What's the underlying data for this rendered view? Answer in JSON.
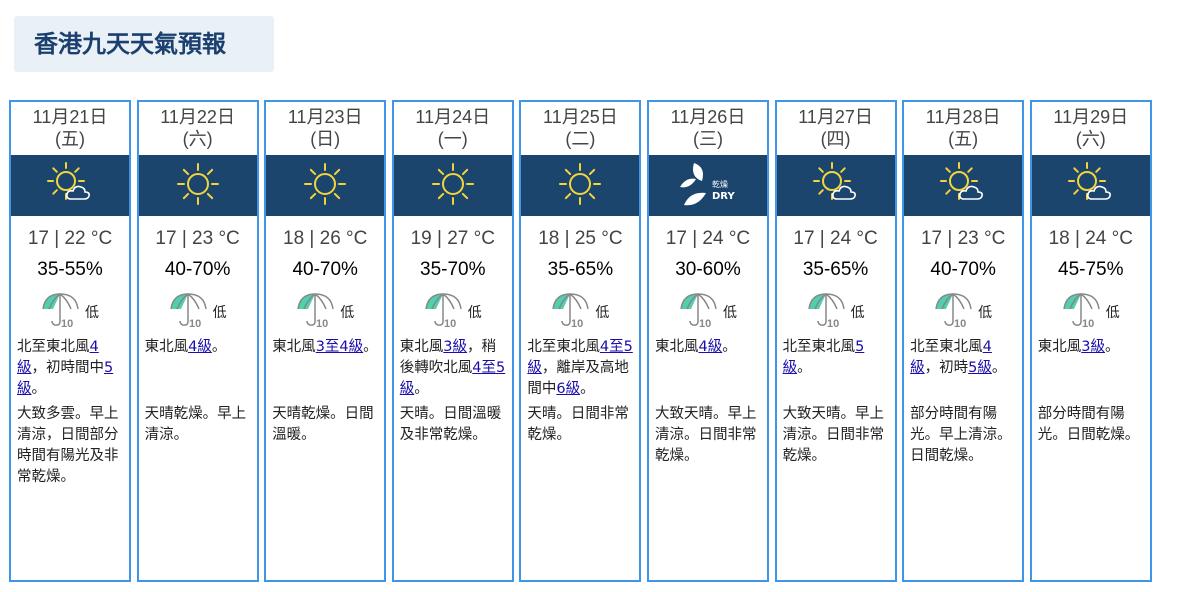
{
  "title": "香港九天天氣預報",
  "colors": {
    "border": "#3f95e8",
    "band": "#1b456c",
    "title_bg": "#e9f0f6",
    "link": "#1a0dab"
  },
  "days": [
    {
      "date": "11月21日",
      "weekday": "(五)",
      "icon": "sun-cloud-icon",
      "temp": "17 | 22 °C",
      "humidity": "35-55%",
      "psr": "低",
      "wind": [
        {
          "t": "北至東北風"
        },
        {
          "t": "4級",
          "link": true
        },
        {
          "t": "，初時間中"
        },
        {
          "t": "5級",
          "link": true
        },
        {
          "t": "。"
        }
      ],
      "desc": "大致多雲。早上清涼，日間部分時間有陽光及非常乾燥。"
    },
    {
      "date": "11月22日",
      "weekday": "(六)",
      "icon": "sun-icon",
      "temp": "17 | 23 °C",
      "humidity": "40-70%",
      "psr": "低",
      "wind": [
        {
          "t": "東北風"
        },
        {
          "t": "4級",
          "link": true
        },
        {
          "t": "。"
        }
      ],
      "desc": "天晴乾燥。早上清涼。"
    },
    {
      "date": "11月23日",
      "weekday": "(日)",
      "icon": "sun-icon",
      "temp": "18 | 26 °C",
      "humidity": "40-70%",
      "psr": "低",
      "wind": [
        {
          "t": "東北風"
        },
        {
          "t": "3至4級",
          "link": true
        },
        {
          "t": "。"
        }
      ],
      "desc": "天晴乾燥。日間溫暖。"
    },
    {
      "date": "11月24日",
      "weekday": "(一)",
      "icon": "sun-icon",
      "temp": "19 | 27 °C",
      "humidity": "35-70%",
      "psr": "低",
      "wind": [
        {
          "t": "東北風"
        },
        {
          "t": "3級",
          "link": true
        },
        {
          "t": "，稍後轉吹北風"
        },
        {
          "t": "4至5級",
          "link": true
        },
        {
          "t": "。"
        }
      ],
      "desc": "天晴。日間溫暖及非常乾燥。"
    },
    {
      "date": "11月25日",
      "weekday": "(二)",
      "icon": "sun-icon",
      "temp": "18 | 25 °C",
      "humidity": "35-65%",
      "psr": "低",
      "wind": [
        {
          "t": "北至東北風"
        },
        {
          "t": "4至5級",
          "link": true
        },
        {
          "t": "，離岸及高地間中"
        },
        {
          "t": "6級",
          "link": true
        },
        {
          "t": "。"
        }
      ],
      "desc": "天晴。日間非常乾燥。"
    },
    {
      "date": "11月26日",
      "weekday": "(三)",
      "icon": "dry-icon",
      "dry_cn": "乾燥",
      "dry_en": "DRY",
      "temp": "17 | 24 °C",
      "humidity": "30-60%",
      "psr": "低",
      "wind": [
        {
          "t": "東北風"
        },
        {
          "t": "4級",
          "link": true
        },
        {
          "t": "。"
        }
      ],
      "desc": "大致天晴。早上清涼。日間非常乾燥。"
    },
    {
      "date": "11月27日",
      "weekday": "(四)",
      "icon": "sun-cloud-icon",
      "temp": "17 | 24 °C",
      "humidity": "35-65%",
      "psr": "低",
      "wind": [
        {
          "t": "北至東北風"
        },
        {
          "t": "5級",
          "link": true
        },
        {
          "t": "。"
        }
      ],
      "desc": "大致天晴。早上清涼。日間非常乾燥。"
    },
    {
      "date": "11月28日",
      "weekday": "(五)",
      "icon": "sun-cloud-icon",
      "temp": "17 | 23 °C",
      "humidity": "40-70%",
      "psr": "低",
      "wind": [
        {
          "t": "北至東北風"
        },
        {
          "t": "4級",
          "link": true
        },
        {
          "t": "，初時"
        },
        {
          "t": "5級",
          "link": true
        },
        {
          "t": "。"
        }
      ],
      "desc": "部分時間有陽光。早上清涼。日間乾燥。"
    },
    {
      "date": "11月29日",
      "weekday": "(六)",
      "icon": "sun-cloud-icon",
      "temp": "18 | 24 °C",
      "humidity": "45-75%",
      "psr": "低",
      "wind": [
        {
          "t": "東北風"
        },
        {
          "t": "3級",
          "link": true
        },
        {
          "t": "。"
        }
      ],
      "desc": "部分時間有陽光。日間乾燥。"
    }
  ]
}
